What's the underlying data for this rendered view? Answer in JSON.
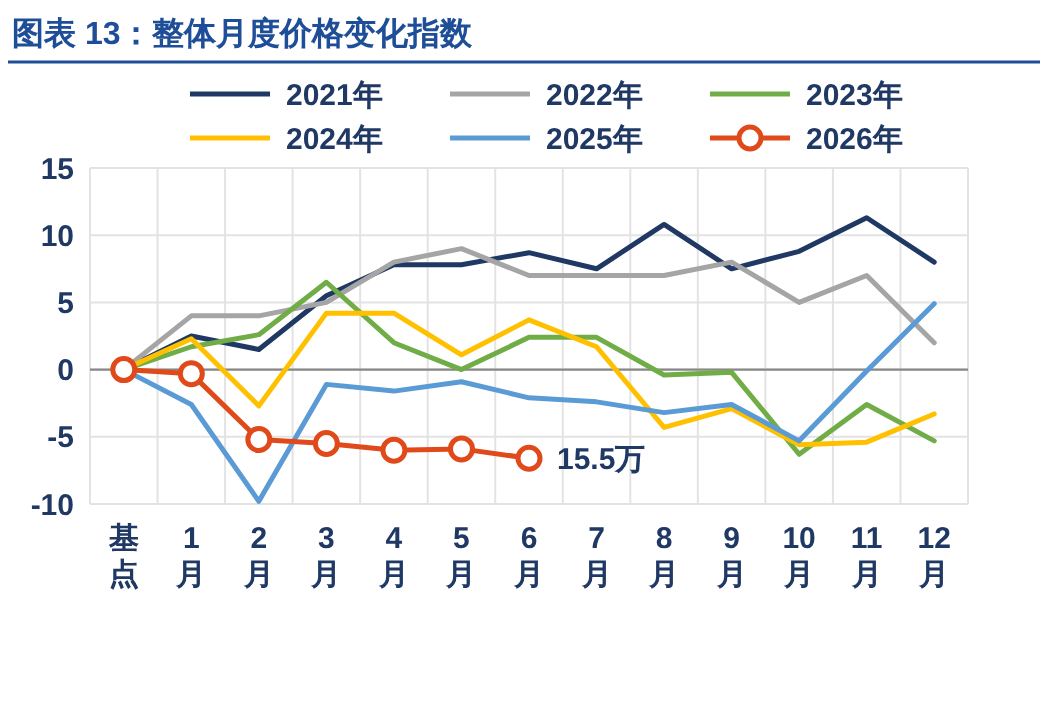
{
  "chart_data": {
    "type": "line",
    "title": "图表 13：整体月度价格变化指数",
    "categories": [
      "基点",
      "1月",
      "2月",
      "3月",
      "4月",
      "5月",
      "6月",
      "7月",
      "8月",
      "9月",
      "10月",
      "11月",
      "12月"
    ],
    "series": [
      {
        "name": "2021年",
        "color": "#1f3864",
        "values": [
          0,
          2.5,
          1.5,
          5.5,
          7.8,
          7.8,
          8.7,
          7.5,
          10.8,
          7.5,
          8.8,
          11.3,
          8.0
        ]
      },
      {
        "name": "2022年",
        "color": "#a5a5a5",
        "values": [
          0,
          4,
          4,
          5,
          8,
          9,
          7,
          7,
          7,
          8,
          5,
          7,
          2
        ]
      },
      {
        "name": "2023年",
        "color": "#70ad47",
        "values": [
          0,
          1.7,
          2.6,
          6.5,
          2,
          0,
          2.4,
          2.4,
          -0.4,
          -0.2,
          -6.3,
          -2.6,
          -5.3
        ]
      },
      {
        "name": "2024年",
        "color": "#ffc000",
        "values": [
          0,
          2.3,
          -2.7,
          4.2,
          4.2,
          1.1,
          3.7,
          1.7,
          -4.3,
          -2.9,
          -5.6,
          -5.4,
          -3.3
        ]
      },
      {
        "name": "2025年",
        "color": "#5b9bd5",
        "values": [
          0,
          -2.6,
          -9.8,
          -1.1,
          -1.6,
          -0.9,
          -2.1,
          -2.4,
          -3.2,
          -2.6,
          -5.3,
          -0.1,
          4.9
        ]
      },
      {
        "name": "2026年",
        "color": "#e04a1a",
        "marker": "circle",
        "values": [
          0,
          -0.3,
          -5.2,
          -5.5,
          -6.0,
          -5.9,
          -6.6,
          null,
          null,
          null,
          null,
          null,
          null
        ]
      }
    ],
    "annotations": [
      {
        "text": "15.5万",
        "x": "6月",
        "y": -6.6
      }
    ],
    "ylim": [
      -10,
      15
    ],
    "yticks": [
      -10,
      -5,
      0,
      5,
      10,
      15
    ],
    "grid": true,
    "legend": "top",
    "marker": "none",
    "line_style": "solid"
  }
}
